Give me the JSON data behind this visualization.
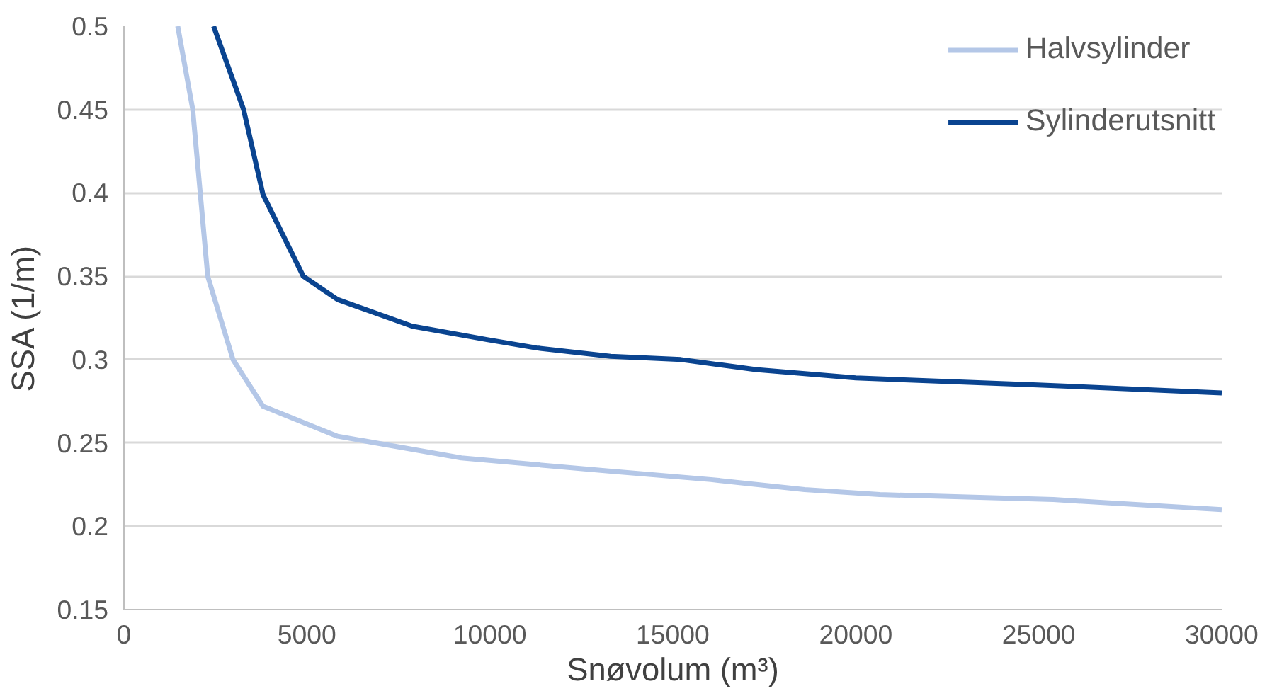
{
  "chart_data": {
    "type": "line",
    "xlabel": "Snøvolum (m³)",
    "ylabel": "SSA (1/m)",
    "xlim": [
      0,
      30000
    ],
    "ylim": [
      0.15,
      0.5
    ],
    "xticks": [
      0,
      5000,
      10000,
      15000,
      20000,
      25000,
      30000
    ],
    "yticks": [
      0.15,
      0.2,
      0.25,
      0.3,
      0.35,
      0.4,
      0.45,
      0.5
    ],
    "grid": "y",
    "legend": "top right",
    "marker": "none",
    "line_style": "solid",
    "series": [
      {
        "name": "Halvsylinder",
        "color": "#b4c7e7",
        "x": [
          1470,
          1880,
          2290,
          2980,
          3800,
          5840,
          9220,
          13300,
          16040,
          18600,
          20650,
          25400,
          30000
        ],
        "values": [
          0.5,
          0.45,
          0.35,
          0.3,
          0.272,
          0.254,
          0.241,
          0.233,
          0.228,
          0.222,
          0.219,
          0.216,
          0.21
        ]
      },
      {
        "name": "Sylinderutsnitt",
        "color": "#0a4490",
        "x": [
          2450,
          3270,
          3800,
          4900,
          5840,
          7880,
          9920,
          11270,
          13300,
          15220,
          17270,
          20000,
          24730,
          30000
        ],
        "values": [
          0.5,
          0.45,
          0.399,
          0.35,
          0.336,
          0.32,
          0.312,
          0.307,
          0.302,
          0.3,
          0.294,
          0.289,
          0.285,
          0.28
        ]
      }
    ]
  }
}
